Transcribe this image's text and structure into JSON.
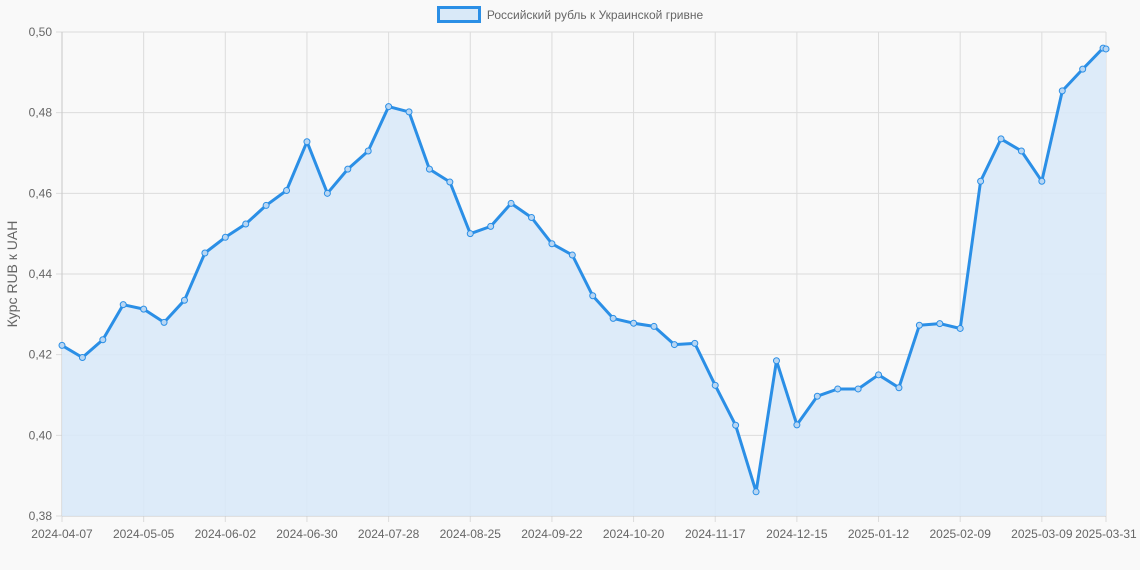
{
  "legend": {
    "label": "Российский рубль к Украинской гривне",
    "border_color": "#2b8fe6",
    "fill_color": "#d9e9f8"
  },
  "chart_data": {
    "type": "line",
    "title": "",
    "xlabel": "",
    "ylabel": "Курс RUB к UAH",
    "ylim": [
      0.38,
      0.5
    ],
    "yticks": [
      "0,38",
      "0,40",
      "0,42",
      "0,44",
      "0,46",
      "0,48",
      "0,50"
    ],
    "xticks": [
      "2024-04-07",
      "2024-05-05",
      "2024-06-02",
      "2024-06-30",
      "2024-07-28",
      "2024-08-25",
      "2024-09-22",
      "2024-10-20",
      "2024-11-17",
      "2024-12-15",
      "2025-01-12",
      "2025-02-09",
      "2025-03-09",
      "2025-03-31"
    ],
    "grid": true,
    "legend_position": "top",
    "fill": true,
    "line_color": "#2b8fe6",
    "fill_color": "#d9e9f8",
    "series": [
      {
        "name": "Российский рубль к Украинской гривне",
        "x": [
          "2024-04-07",
          "2024-04-14",
          "2024-04-21",
          "2024-04-28",
          "2024-05-05",
          "2024-05-12",
          "2024-05-19",
          "2024-05-26",
          "2024-06-02",
          "2024-06-09",
          "2024-06-16",
          "2024-06-23",
          "2024-06-30",
          "2024-07-07",
          "2024-07-14",
          "2024-07-21",
          "2024-07-28",
          "2024-08-04",
          "2024-08-11",
          "2024-08-18",
          "2024-08-25",
          "2024-09-01",
          "2024-09-08",
          "2024-09-15",
          "2024-09-22",
          "2024-09-29",
          "2024-10-06",
          "2024-10-13",
          "2024-10-20",
          "2024-10-27",
          "2024-11-03",
          "2024-11-10",
          "2024-11-17",
          "2024-11-24",
          "2024-12-01",
          "2024-12-08",
          "2024-12-15",
          "2024-12-22",
          "2024-12-29",
          "2025-01-05",
          "2025-01-12",
          "2025-01-19",
          "2025-01-26",
          "2025-02-02",
          "2025-02-09",
          "2025-02-16",
          "2025-02-23",
          "2025-03-02",
          "2025-03-09",
          "2025-03-16",
          "2025-03-23",
          "2025-03-30",
          "2025-03-31"
        ],
        "values": [
          0.4223,
          0.4193,
          0.4237,
          0.4324,
          0.4313,
          0.428,
          0.4335,
          0.4452,
          0.4491,
          0.4524,
          0.457,
          0.4607,
          0.4728,
          0.46,
          0.466,
          0.4705,
          0.4815,
          0.4802,
          0.466,
          0.4628,
          0.45,
          0.4518,
          0.4575,
          0.454,
          0.4475,
          0.4447,
          0.4346,
          0.429,
          0.4278,
          0.427,
          0.4225,
          0.4228,
          0.4124,
          0.4025,
          0.386,
          0.4185,
          0.4026,
          0.4097,
          0.4115,
          0.4115,
          0.415,
          0.4118,
          0.4273,
          0.4277,
          0.4265,
          0.463,
          0.4735,
          0.4705,
          0.463,
          0.4854,
          0.4908,
          0.496,
          0.4958
        ]
      }
    ]
  }
}
